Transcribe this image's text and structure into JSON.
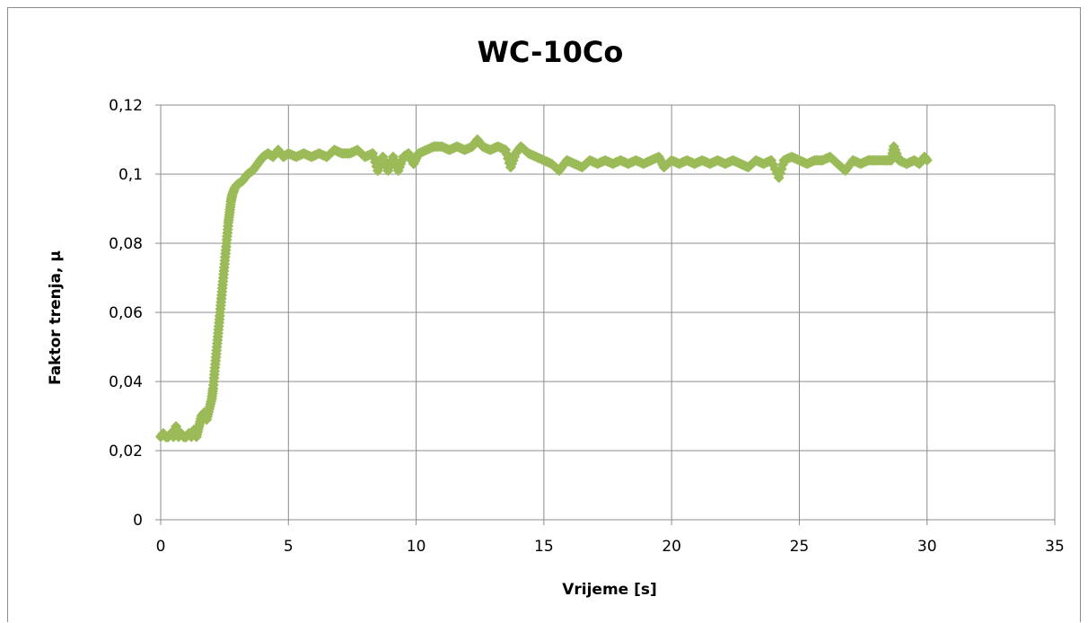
{
  "chart_data": {
    "type": "scatter",
    "title": "WC-10Co",
    "xlabel": "Vrijeme [s]",
    "ylabel": "Faktor trenja, μ",
    "xlim": [
      0,
      35
    ],
    "ylim": [
      0,
      0.12
    ],
    "x_ticks": [
      "0",
      "5",
      "10",
      "15",
      "20",
      "25",
      "30",
      "35"
    ],
    "y_ticks": [
      "0",
      "0,02",
      "0,04",
      "0,06",
      "0,08",
      "0,1",
      "0,12"
    ],
    "x_tick_values": [
      0,
      5,
      10,
      15,
      20,
      25,
      30,
      35
    ],
    "y_tick_values": [
      0,
      0.02,
      0.04,
      0.06,
      0.08,
      0.1,
      0.12
    ],
    "grid": true,
    "marker": "diamond",
    "color": "#9bbb59",
    "series": [
      {
        "values": [
          [
            0.0,
            0.024
          ],
          [
            0.1,
            0.025
          ],
          [
            0.2,
            0.024
          ],
          [
            0.3,
            0.024
          ],
          [
            0.4,
            0.025
          ],
          [
            0.5,
            0.024
          ],
          [
            0.6,
            0.027
          ],
          [
            0.7,
            0.024
          ],
          [
            0.8,
            0.025
          ],
          [
            0.9,
            0.024
          ],
          [
            1.0,
            0.024
          ],
          [
            1.1,
            0.025
          ],
          [
            1.2,
            0.024
          ],
          [
            1.3,
            0.026
          ],
          [
            1.4,
            0.024
          ],
          [
            1.5,
            0.027
          ],
          [
            1.6,
            0.03
          ],
          [
            1.7,
            0.031
          ],
          [
            1.8,
            0.029
          ],
          [
            1.9,
            0.032
          ],
          [
            2.0,
            0.035
          ],
          [
            2.05,
            0.038
          ],
          [
            2.1,
            0.042
          ],
          [
            2.15,
            0.046
          ],
          [
            2.2,
            0.05
          ],
          [
            2.25,
            0.054
          ],
          [
            2.3,
            0.058
          ],
          [
            2.35,
            0.062
          ],
          [
            2.4,
            0.066
          ],
          [
            2.45,
            0.07
          ],
          [
            2.5,
            0.074
          ],
          [
            2.55,
            0.078
          ],
          [
            2.6,
            0.082
          ],
          [
            2.65,
            0.086
          ],
          [
            2.7,
            0.089
          ],
          [
            2.75,
            0.092
          ],
          [
            2.8,
            0.094
          ],
          [
            2.9,
            0.096
          ],
          [
            3.0,
            0.097
          ],
          [
            3.2,
            0.098
          ],
          [
            3.4,
            0.1
          ],
          [
            3.6,
            0.101
          ],
          [
            3.8,
            0.103
          ],
          [
            4.0,
            0.105
          ],
          [
            4.2,
            0.106
          ],
          [
            4.4,
            0.105
          ],
          [
            4.6,
            0.107
          ],
          [
            4.8,
            0.105
          ],
          [
            5.0,
            0.106
          ],
          [
            5.3,
            0.105
          ],
          [
            5.6,
            0.106
          ],
          [
            5.9,
            0.105
          ],
          [
            6.2,
            0.106
          ],
          [
            6.5,
            0.105
          ],
          [
            6.8,
            0.107
          ],
          [
            7.1,
            0.106
          ],
          [
            7.4,
            0.106
          ],
          [
            7.7,
            0.107
          ],
          [
            8.0,
            0.105
          ],
          [
            8.3,
            0.106
          ],
          [
            8.5,
            0.101
          ],
          [
            8.7,
            0.105
          ],
          [
            8.9,
            0.101
          ],
          [
            9.1,
            0.105
          ],
          [
            9.3,
            0.101
          ],
          [
            9.5,
            0.105
          ],
          [
            9.7,
            0.106
          ],
          [
            9.9,
            0.103
          ],
          [
            10.1,
            0.106
          ],
          [
            10.4,
            0.107
          ],
          [
            10.7,
            0.108
          ],
          [
            11.0,
            0.108
          ],
          [
            11.3,
            0.107
          ],
          [
            11.6,
            0.108
          ],
          [
            11.9,
            0.107
          ],
          [
            12.2,
            0.108
          ],
          [
            12.4,
            0.11
          ],
          [
            12.6,
            0.108
          ],
          [
            12.9,
            0.107
          ],
          [
            13.2,
            0.108
          ],
          [
            13.5,
            0.107
          ],
          [
            13.7,
            0.102
          ],
          [
            13.9,
            0.106
          ],
          [
            14.1,
            0.108
          ],
          [
            14.4,
            0.106
          ],
          [
            14.7,
            0.105
          ],
          [
            15.0,
            0.104
          ],
          [
            15.3,
            0.103
          ],
          [
            15.6,
            0.101
          ],
          [
            15.9,
            0.104
          ],
          [
            16.2,
            0.103
          ],
          [
            16.5,
            0.102
          ],
          [
            16.8,
            0.104
          ],
          [
            17.1,
            0.103
          ],
          [
            17.4,
            0.104
          ],
          [
            17.7,
            0.103
          ],
          [
            18.0,
            0.104
          ],
          [
            18.3,
            0.103
          ],
          [
            18.6,
            0.104
          ],
          [
            18.9,
            0.103
          ],
          [
            19.2,
            0.104
          ],
          [
            19.5,
            0.105
          ],
          [
            19.7,
            0.102
          ],
          [
            20.0,
            0.104
          ],
          [
            20.3,
            0.103
          ],
          [
            20.6,
            0.104
          ],
          [
            20.9,
            0.103
          ],
          [
            21.2,
            0.104
          ],
          [
            21.5,
            0.103
          ],
          [
            21.8,
            0.104
          ],
          [
            22.1,
            0.103
          ],
          [
            22.4,
            0.104
          ],
          [
            22.7,
            0.103
          ],
          [
            23.0,
            0.102
          ],
          [
            23.3,
            0.104
          ],
          [
            23.6,
            0.103
          ],
          [
            23.9,
            0.104
          ],
          [
            24.2,
            0.099
          ],
          [
            24.4,
            0.104
          ],
          [
            24.7,
            0.105
          ],
          [
            25.0,
            0.104
          ],
          [
            25.3,
            0.103
          ],
          [
            25.6,
            0.104
          ],
          [
            25.9,
            0.104
          ],
          [
            26.2,
            0.105
          ],
          [
            26.5,
            0.103
          ],
          [
            26.8,
            0.101
          ],
          [
            27.1,
            0.104
          ],
          [
            27.4,
            0.103
          ],
          [
            27.7,
            0.104
          ],
          [
            28.0,
            0.104
          ],
          [
            28.3,
            0.104
          ],
          [
            28.6,
            0.104
          ],
          [
            28.7,
            0.108
          ],
          [
            28.9,
            0.104
          ],
          [
            29.2,
            0.103
          ],
          [
            29.5,
            0.104
          ],
          [
            29.7,
            0.103
          ],
          [
            29.9,
            0.105
          ],
          [
            30.0,
            0.104
          ]
        ]
      }
    ]
  }
}
